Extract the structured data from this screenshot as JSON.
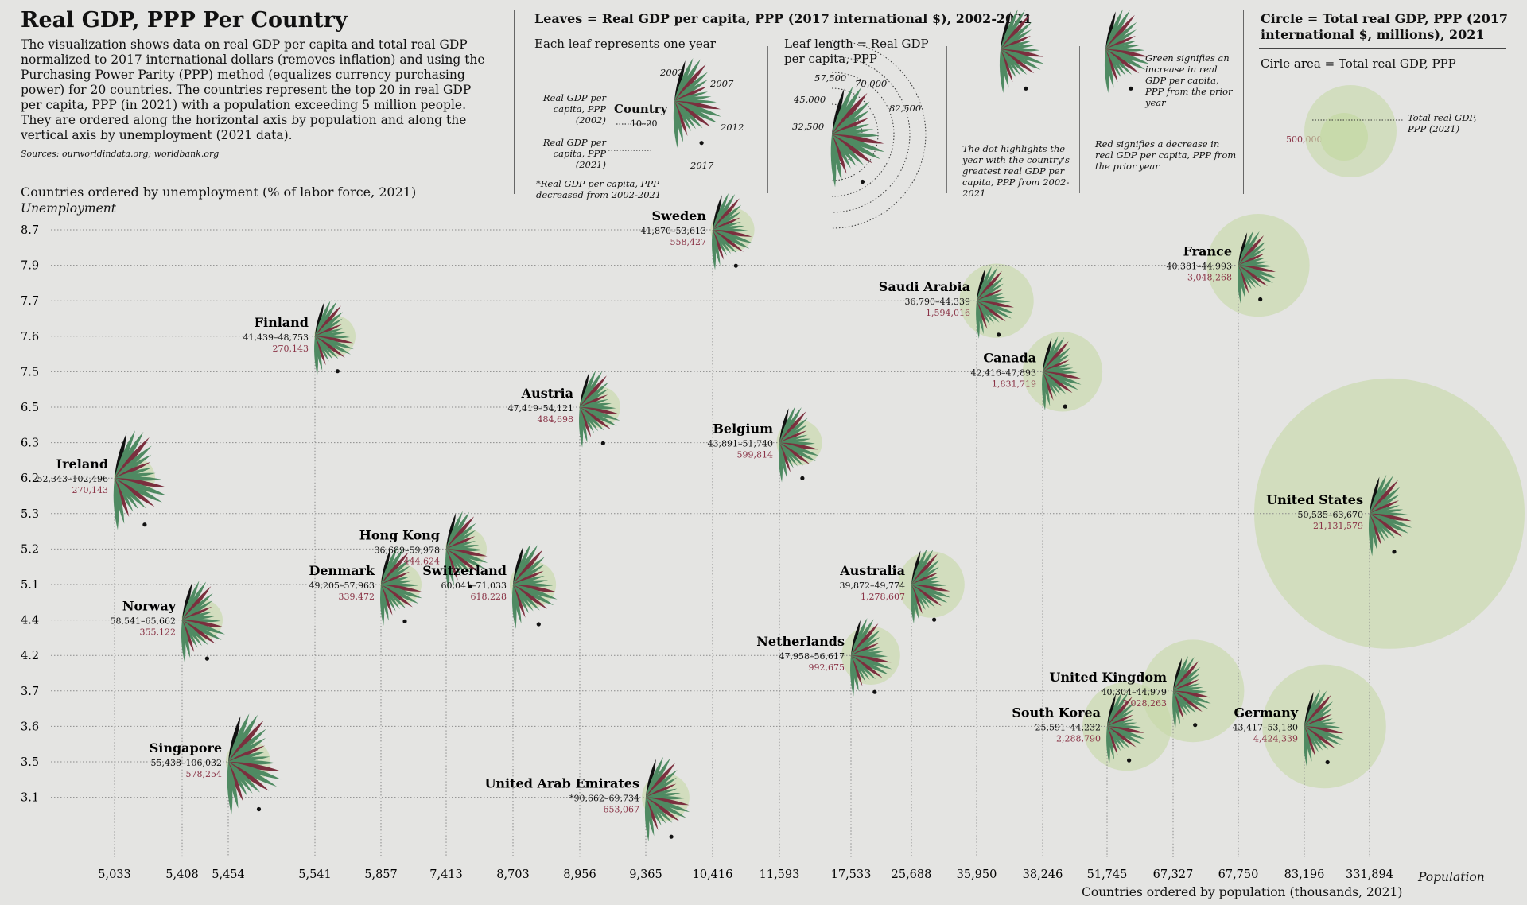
{
  "header": {
    "title": "Real GDP, PPP Per Country",
    "intro": "The visualization shows data on real GDP per capita and total real GDP normalized to 2017 international dollars (removes inflation) and using the Purchasing Power Parity (PPP) method (equalizes currency purchasing power) for 20 countries. The countries represent the top 20 in real GDP per capita, PPP (in 2021) with a population exceeding 5 million people. They are ordered along the horizontal axis by population and along the vertical axis by unemployment (2021 data).",
    "sources": "Sources: ourworldindata.org; worldbank.org"
  },
  "legend": {
    "leaves_title": "Leaves = Real GDP per capita, PPP (2017 international $), 2002-2021",
    "each_leaf": "Each leaf represents one year",
    "ex_country": "Country",
    "ex_range": "10–20",
    "ex_label_2002": "Real GDP per capita, PPP (2002)",
    "ex_label_2021": "Real GDP per capita, PPP (2021)",
    "ex_note": "*Real GDP per capita, PPP decreased from 2002-2021",
    "years": [
      "2002",
      "2007",
      "2012",
      "2017"
    ],
    "leaf_length": "Leaf length = Real GDP per capita, PPP",
    "arc_values": [
      "32,500",
      "45,000",
      "57,500",
      "70,000",
      "82,500"
    ],
    "dot_note": "The dot highlights the year with the country's greatest real GDP per capita, PPP from 2002-2021",
    "green_note": "Green signifies an increase in real GDP per capita, PPP from the prior year",
    "red_note": "Red signifies a decrease in real GDP per capita, PPP from the prior year",
    "circle_title": "Circle = Total real GDP, PPP (2017 international $, millions), 2021",
    "circle_area": "Cirle area = Total real GDP, PPP",
    "circle_value": "500,000",
    "circle_label": "Total real GDP, PPP (2021)"
  },
  "axes": {
    "y_title": "Countries ordered by unemployment (% of labor force, 2021)",
    "y_sub": "Unemployment",
    "x_title": "Countries ordered by population (thousands, 2021)",
    "x_sub": "Population",
    "y_ticks": [
      "8.7",
      "7.9",
      "7.7",
      "7.6",
      "7.5",
      "6.5",
      "6.3",
      "6.2",
      "5.3",
      "5.2",
      "5.1",
      "4.4",
      "4.2",
      "3.7",
      "3.6",
      "3.5",
      "3.1"
    ],
    "x_ticks": [
      "5,033",
      "5,408",
      "5,454",
      "5,541",
      "5,857",
      "7,413",
      "8,703",
      "8,956",
      "9,365",
      "10,416",
      "11,593",
      "17,533",
      "25,688",
      "35,950",
      "38,246",
      "51,745",
      "67,327",
      "67,750",
      "83,196",
      "331,894"
    ]
  },
  "colors": {
    "up": "#4f8a62",
    "down": "#7b2f3e",
    "start": "#111111",
    "circle": "#c7d9a8",
    "range": "#111111",
    "total": "#8a3346",
    "grid": "#8a8a8a"
  },
  "chart_data": {
    "type": "scatter",
    "x_field": "population_thousands_2021",
    "y_field": "unemployment_pct_2021",
    "countries": [
      {
        "name": "Ireland",
        "population": "5,033",
        "unemployment": 6.2,
        "range": "52,343–102,496",
        "total": "270,143"
      },
      {
        "name": "Norway",
        "population": "5,408",
        "unemployment": 4.4,
        "range": "58,541–65,662",
        "total": "355,122"
      },
      {
        "name": "Singapore",
        "population": "5,454",
        "unemployment": 3.5,
        "range": "55,438–106,032",
        "total": "578,254"
      },
      {
        "name": "Finland",
        "population": "5,541",
        "unemployment": 7.6,
        "range": "41,439–48,753",
        "total": "270,143"
      },
      {
        "name": "Denmark",
        "population": "5,857",
        "unemployment": 5.1,
        "range": "49,205–57,963",
        "total": "339,472"
      },
      {
        "name": "Hong Kong",
        "population": "7,413",
        "unemployment": 5.2,
        "range": "36,689–59,978",
        "total": "444,624"
      },
      {
        "name": "Switzerland",
        "population": "8,703",
        "unemployment": 5.1,
        "range": "60,041–71,033",
        "total": "618,228"
      },
      {
        "name": "Austria",
        "population": "8,956",
        "unemployment": 6.5,
        "range": "47,419–54,121",
        "total": "484,698"
      },
      {
        "name": "United Arab Emirates",
        "population": "9,365",
        "unemployment": 3.1,
        "range": "*90,662–69,734",
        "total": "653,067"
      },
      {
        "name": "Sweden",
        "population": "10,416",
        "unemployment": 8.7,
        "range": "41,870–53,613",
        "total": "558,427"
      },
      {
        "name": "Belgium",
        "population": "11,593",
        "unemployment": 6.3,
        "range": "43,891–51,740",
        "total": "599,814"
      },
      {
        "name": "Netherlands",
        "population": "17,533",
        "unemployment": 4.2,
        "range": "47,958–56,617",
        "total": "992,675"
      },
      {
        "name": "Australia",
        "population": "25,688",
        "unemployment": 5.1,
        "range": "39,872–49,774",
        "total": "1,278,607"
      },
      {
        "name": "Saudi Arabia",
        "population": "35,950",
        "unemployment": 7.7,
        "range": "36,790–44,339",
        "total": "1,594,016"
      },
      {
        "name": "Canada",
        "population": "38,246",
        "unemployment": 7.5,
        "range": "42,416–47,893",
        "total": "1,831,719"
      },
      {
        "name": "South Korea",
        "population": "51,745",
        "unemployment": 3.6,
        "range": "25,591–44,232",
        "total": "2,288,790"
      },
      {
        "name": "United Kingdom",
        "population": "67,327",
        "unemployment": 3.7,
        "range": "40,304–44,979",
        "total": "3,028,263"
      },
      {
        "name": "France",
        "population": "67,750",
        "unemployment": 7.9,
        "range": "40,381–44,993",
        "total": "3,048,268"
      },
      {
        "name": "Germany",
        "population": "83,196",
        "unemployment": 3.6,
        "range": "43,417–53,180",
        "total": "4,424,339"
      },
      {
        "name": "United States",
        "population": "331,894",
        "unemployment": 5.3,
        "range": "50,535–63,670",
        "total": "21,131,579"
      }
    ]
  }
}
